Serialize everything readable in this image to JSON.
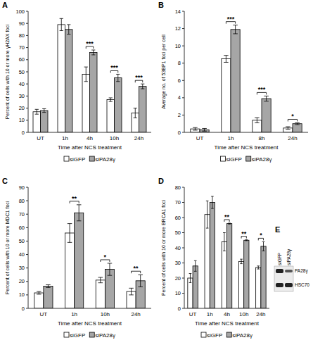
{
  "chart_data": [
    {
      "type": "bar",
      "title": "A",
      "y_label": "Percent of cells with 10 or more γH2AX foci",
      "x_label": "Time after NCS treatment",
      "categories": [
        "UT",
        "1h",
        "4h",
        "10h",
        "24h"
      ],
      "series": [
        {
          "name": "siGFP",
          "color": "#ffffff",
          "values": [
            17,
            89,
            48,
            27,
            16
          ],
          "errors": [
            2,
            5,
            6,
            1.5,
            4
          ]
        },
        {
          "name": "siPA28γ",
          "color": "#a6a6a6",
          "values": [
            18,
            85,
            66,
            45,
            38
          ],
          "errors": [
            1.5,
            4,
            2,
            3,
            2
          ]
        }
      ],
      "ylim": [
        0,
        100
      ],
      "yticks": [
        0,
        10,
        20,
        30,
        40,
        50,
        60,
        70,
        80,
        90,
        100
      ],
      "grid": false,
      "legend": "bottom",
      "annotations": [
        {
          "category": "4h",
          "text": "***"
        },
        {
          "category": "10h",
          "text": "***"
        },
        {
          "category": "24h",
          "text": "***"
        }
      ]
    },
    {
      "type": "bar",
      "title": "B",
      "y_label": "Average no. of 53BP1 foci per cell",
      "x_label": "Time after NCS treatment",
      "categories": [
        "UT",
        "1h",
        "8h",
        "24h"
      ],
      "series": [
        {
          "name": "siGFP",
          "color": "#ffffff",
          "values": [
            0.4,
            8.5,
            1.4,
            0.5
          ],
          "errors": [
            0.15,
            0.4,
            0.3,
            0.15
          ]
        },
        {
          "name": "siPA28γ",
          "color": "#a6a6a6",
          "values": [
            0.3,
            11.9,
            3.9,
            1.0
          ],
          "errors": [
            0.15,
            0.5,
            0.3,
            0.1
          ]
        }
      ],
      "ylim": [
        0,
        14
      ],
      "yticks": [
        0,
        2,
        4,
        6,
        8,
        10,
        12,
        14
      ],
      "grid": false,
      "legend": "bottom",
      "annotations": [
        {
          "category": "1h",
          "text": "***"
        },
        {
          "category": "8h",
          "text": "***"
        },
        {
          "category": "24h",
          "text": "*"
        }
      ]
    },
    {
      "type": "bar",
      "title": "C",
      "y_label": "Percent of cells with 10 or more MDC1 foci",
      "x_label": "Time after NCS treatment",
      "categories": [
        "UT",
        "1h",
        "10h",
        "24h"
      ],
      "series": [
        {
          "name": "siGFP",
          "color": "#ffffff",
          "values": [
            11.5,
            56,
            21,
            12.5
          ],
          "errors": [
            1,
            7,
            2,
            2.5
          ]
        },
        {
          "name": "siPA28γ",
          "color": "#a6a6a6",
          "values": [
            16.5,
            71,
            29,
            20.5
          ],
          "errors": [
            1,
            6,
            4.5,
            4.5
          ]
        }
      ],
      "ylim": [
        0,
        90
      ],
      "yticks": [
        0,
        10,
        20,
        30,
        40,
        50,
        60,
        70,
        80,
        90
      ],
      "grid": false,
      "legend": "bottom",
      "annotations": [
        {
          "category": "1h",
          "text": "**"
        },
        {
          "category": "10h",
          "text": "*"
        },
        {
          "category": "24h",
          "text": "**"
        }
      ]
    },
    {
      "type": "bar",
      "title": "D",
      "y_label": "Percent of cells with 10 or more BRCA1 foci",
      "x_label": "Time after NCS treatment",
      "categories": [
        "UT",
        "1h",
        "4h",
        "10h",
        "24h"
      ],
      "series": [
        {
          "name": "siGFP",
          "color": "#ffffff",
          "values": [
            20,
            62,
            44,
            31,
            27
          ],
          "errors": [
            3,
            9,
            6,
            1.5,
            1
          ]
        },
        {
          "name": "siPA28γ",
          "color": "#a6a6a6",
          "values": [
            28,
            70,
            56,
            45,
            41
          ],
          "errors": [
            3.5,
            4,
            0.3,
            0.3,
            3
          ]
        }
      ],
      "ylim": [
        0,
        80
      ],
      "yticks": [
        0,
        10,
        20,
        30,
        40,
        50,
        60,
        70,
        80
      ],
      "grid": false,
      "legend": "bottom",
      "annotations": [
        {
          "category": "4h",
          "text": "**"
        },
        {
          "category": "10h",
          "text": "**"
        },
        {
          "category": "24h",
          "text": "*"
        }
      ]
    }
  ],
  "blot": {
    "title": "E",
    "lanes": [
      "siGFP",
      "siPA28γ"
    ],
    "bands": [
      "PA28γ",
      "HSC70"
    ]
  }
}
